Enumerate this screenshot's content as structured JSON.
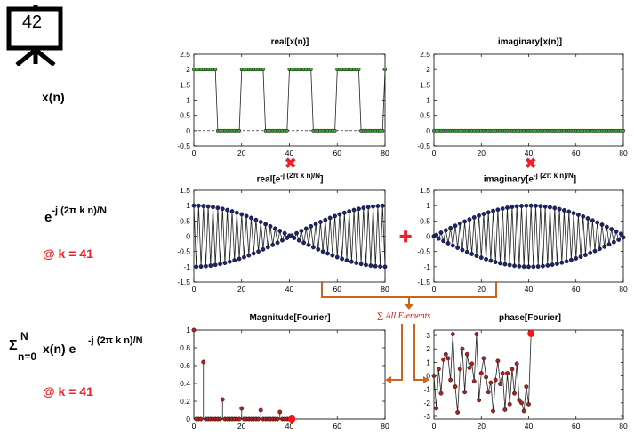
{
  "slide_number": "42",
  "row_labels": {
    "x": "x(n)",
    "e_base": "e",
    "e_exp": "-j (2π k n)/N",
    "k1": "@ k = 41",
    "sum_sigma": "Σ",
    "sum_sup": "N",
    "sum_sub": "n=0",
    "sum_body": "x(n) e",
    "sum_exp": "-j (2π k n)/N",
    "k2": "@ k = 41"
  },
  "operators": {
    "multiply": "✖",
    "plus": "✚",
    "sum_text": "∑ All Elements"
  },
  "colors": {
    "green": "#3fa535",
    "navy": "#1c2472",
    "red": "#ff1010",
    "darkred": "#b0201c",
    "brown": "#c8651e",
    "accent_red": "#e8242a"
  },
  "plot_titles": {
    "real_x": "real[x(n)]",
    "imag_x": "imaginary[x(n)]",
    "real_e_pre": "real[e",
    "real_e_sup": "-j (2π k n)/N",
    "real_e_post": "]",
    "imag_e_pre": "imaginary[e",
    "imag_e_sup": "-j (2π k n)/N",
    "imag_e_post": "]",
    "mag": "Magnitude[Fourier]",
    "phase": "phase[Fourier]"
  },
  "chart_data": [
    {
      "id": "real_x",
      "type": "line",
      "x": "n = 0..80",
      "values_desc": "square wave: 2 for n in [0,9],[20,29],[40,49],[60,69]; 0 otherwise",
      "ylim": [
        -0.5,
        2.5
      ],
      "xlim": [
        0,
        80
      ],
      "yticks": [
        "-0.5",
        "0",
        "0.5",
        "1",
        "1.5",
        "2",
        "2.5"
      ],
      "xticks": [
        "0",
        "20",
        "40",
        "60",
        "80"
      ]
    },
    {
      "id": "imag_x",
      "type": "line",
      "values_desc": "all zeros",
      "ylim": [
        -0.5,
        2.5
      ],
      "xlim": [
        0,
        80
      ],
      "yticks": [
        "-0.5",
        "0",
        "0.5",
        "1",
        "1.5",
        "2",
        "2.5"
      ],
      "xticks": [
        "0",
        "20",
        "40",
        "60",
        "80"
      ]
    },
    {
      "id": "real_e",
      "type": "line",
      "k": 41,
      "N": 81,
      "values_desc": "cos(2π·41·n/81)",
      "ylim": [
        -1.5,
        1.5
      ],
      "xlim": [
        0,
        80
      ],
      "yticks": [
        "-1.5",
        "-1",
        "-0.5",
        "0",
        "0.5",
        "1",
        "1.5"
      ],
      "xticks": [
        "0",
        "20",
        "40",
        "60",
        "80"
      ]
    },
    {
      "id": "imag_e",
      "type": "line",
      "k": 41,
      "N": 81,
      "values_desc": "-sin(2π·41·n/81)",
      "ylim": [
        -1.5,
        1.5
      ],
      "xlim": [
        0,
        80
      ],
      "yticks": [
        "-1.5",
        "-1",
        "-0.5",
        "0",
        "0.5",
        "1",
        "1.5"
      ],
      "xticks": [
        "0",
        "20",
        "40",
        "60",
        "80"
      ]
    },
    {
      "id": "mag",
      "type": "scatter",
      "x": [
        0,
        1,
        2,
        3,
        4,
        5,
        6,
        7,
        8,
        9,
        10,
        11,
        12,
        13,
        14,
        15,
        16,
        17,
        18,
        19,
        20,
        21,
        22,
        23,
        24,
        25,
        26,
        27,
        28,
        29,
        30,
        31,
        32,
        33,
        34,
        35,
        36,
        37,
        38,
        39,
        40,
        41
      ],
      "values": [
        1,
        0,
        0,
        0,
        0.64,
        0,
        0,
        0,
        0,
        0,
        0,
        0,
        0.22,
        0,
        0,
        0,
        0,
        0,
        0,
        0,
        0.12,
        0,
        0,
        0,
        0,
        0,
        0,
        0,
        0.1,
        0,
        0,
        0,
        0,
        0,
        0,
        0,
        0.08,
        0,
        0,
        0,
        0,
        0
      ],
      "highlight_x": 41,
      "ylim": [
        0,
        1
      ],
      "xlim": [
        0,
        80
      ],
      "yticks": [
        "0",
        "0.2",
        "0.4",
        "0.6",
        "0.8",
        "1"
      ],
      "xticks": [
        "0",
        "20",
        "40",
        "60",
        "80"
      ]
    },
    {
      "id": "phase",
      "type": "line",
      "x": [
        0,
        1,
        2,
        3,
        4,
        5,
        6,
        7,
        8,
        9,
        10,
        11,
        12,
        13,
        14,
        15,
        16,
        17,
        18,
        19,
        20,
        21,
        22,
        23,
        24,
        25,
        26,
        27,
        28,
        29,
        30,
        31,
        32,
        33,
        34,
        35,
        36,
        37,
        38,
        39,
        40,
        41
      ],
      "values": [
        0,
        -2.4,
        0.5,
        -1.3,
        1.2,
        1.6,
        1.3,
        -0.3,
        3.1,
        -0.8,
        -2.7,
        0.5,
        2.0,
        -1.2,
        1.6,
        0.6,
        0.9,
        -0.4,
        3.1,
        -1.8,
        0.2,
        1.3,
        -0.1,
        -1.2,
        -0.5,
        -2.6,
        -0.3,
        1.1,
        -0.6,
        0.2,
        -2.5,
        0.2,
        -2.1,
        0.5,
        -1.3,
        0.9,
        -1.8,
        -2.0,
        -2.6,
        -0.8,
        -2.1,
        3.14
      ],
      "highlight_x": 41,
      "ylim": [
        -3.2,
        3.4
      ],
      "xlim": [
        0,
        80
      ],
      "yticks": [
        "-3",
        "-2",
        "-1",
        "0",
        "1",
        "2",
        "3"
      ],
      "xticks": [
        "0",
        "20",
        "40",
        "60",
        "80"
      ]
    }
  ]
}
